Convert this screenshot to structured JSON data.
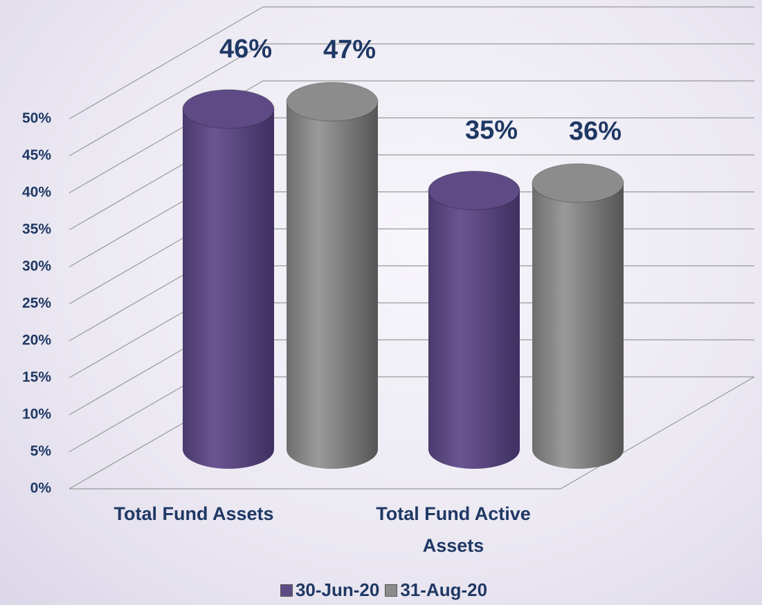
{
  "chart_data": {
    "type": "bar3d",
    "categories": [
      "Total Fund Assets",
      "Total Fund Active Assets"
    ],
    "series": [
      {
        "name": "30-Jun-20",
        "color": "#5e4a85",
        "values": [
          46,
          35
        ],
        "value_labels": [
          "46%",
          "35%"
        ]
      },
      {
        "name": "31-Aug-20",
        "color": "#8c8c8c",
        "values": [
          47,
          36
        ],
        "value_labels": [
          "47%",
          "36%"
        ]
      }
    ],
    "ylim": [
      0,
      50
    ],
    "yticks": [
      {
        "value": 0,
        "label": "0%"
      },
      {
        "value": 5,
        "label": "5%"
      },
      {
        "value": 10,
        "label": "10%"
      },
      {
        "value": 15,
        "label": "15%"
      },
      {
        "value": 20,
        "label": "20%"
      },
      {
        "value": 25,
        "label": "25%"
      },
      {
        "value": 30,
        "label": "30%"
      },
      {
        "value": 35,
        "label": "35%"
      },
      {
        "value": 40,
        "label": "40%"
      },
      {
        "value": 45,
        "label": "45%"
      },
      {
        "value": 50,
        "label": "50%"
      }
    ],
    "grid": true,
    "legend": "bottom"
  }
}
